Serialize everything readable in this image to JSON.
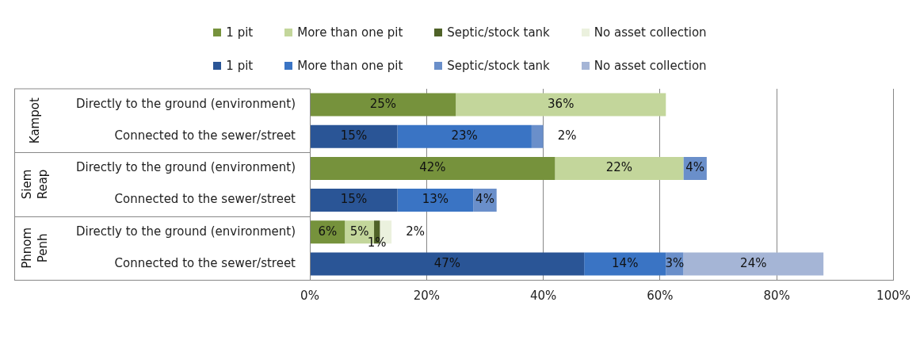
{
  "chart_data": {
    "type": "bar",
    "orientation": "horizontal",
    "stacked": true,
    "categories": [
      "Directly to the ground (environment)",
      "Connected to the sewer/street",
      "Directly to the ground (environment)",
      "Connected to the sewer/street",
      "Directly to the ground (environment)",
      "Connected to the sewer/street"
    ],
    "annotations": [
      "Kampot",
      "Siem Reap",
      "Phnom Penh"
    ],
    "series": [
      {
        "name": "1 pit",
        "color": "#76923c",
        "values": [
          25,
          null,
          42,
          null,
          6,
          null
        ],
        "value_labels": [
          "25%",
          null,
          "42%",
          null,
          "6%",
          null
        ]
      },
      {
        "name": "More than one pit",
        "color": "#c3d69b",
        "values": [
          36,
          null,
          22,
          null,
          5,
          null
        ],
        "value_labels": [
          "36%",
          null,
          "22%",
          null,
          "5%",
          null
        ]
      },
      {
        "name": "Septic/stock tank",
        "color": "#4f6228",
        "values": [
          null,
          null,
          null,
          null,
          1,
          null
        ],
        "value_labels": [
          null,
          null,
          null,
          null,
          "1%",
          null
        ]
      },
      {
        "name": "No asset collection",
        "color": "#ebf1de",
        "values": [
          null,
          null,
          null,
          null,
          2,
          null
        ],
        "value_labels": [
          null,
          null,
          null,
          null,
          "2%",
          null
        ]
      },
      {
        "name": "1 pit",
        "color": "#2a5596",
        "values": [
          null,
          15,
          null,
          15,
          null,
          47
        ],
        "value_labels": [
          null,
          "15%",
          null,
          "15%",
          null,
          "47%"
        ]
      },
      {
        "name": "More than one pit",
        "color": "#3a74c4",
        "values": [
          null,
          23,
          null,
          13,
          null,
          14
        ],
        "value_labels": [
          null,
          "23%",
          null,
          "13%",
          null,
          "14%"
        ]
      },
      {
        "name": "Septic/stock tank",
        "color": "#6a8fca",
        "values": [
          null,
          2,
          4,
          4,
          null,
          3
        ],
        "value_labels": [
          null,
          "2%",
          "4%",
          "4%",
          null,
          "3%"
        ]
      },
      {
        "name": "No asset collection",
        "color": "#a5b5d6",
        "values": [
          null,
          null,
          null,
          null,
          null,
          24
        ],
        "value_labels": [
          null,
          null,
          null,
          null,
          null,
          "24%"
        ]
      }
    ],
    "xlim": [
      0,
      100
    ],
    "xticks": [
      {
        "value": 0,
        "label": "0%"
      },
      {
        "value": 20,
        "label": "20%"
      },
      {
        "value": 40,
        "label": "40%"
      },
      {
        "value": 60,
        "label": "60%"
      },
      {
        "value": 80,
        "label": "80%"
      },
      {
        "value": 100,
        "label": "100%"
      }
    ],
    "grid": "x",
    "legend": "top"
  }
}
